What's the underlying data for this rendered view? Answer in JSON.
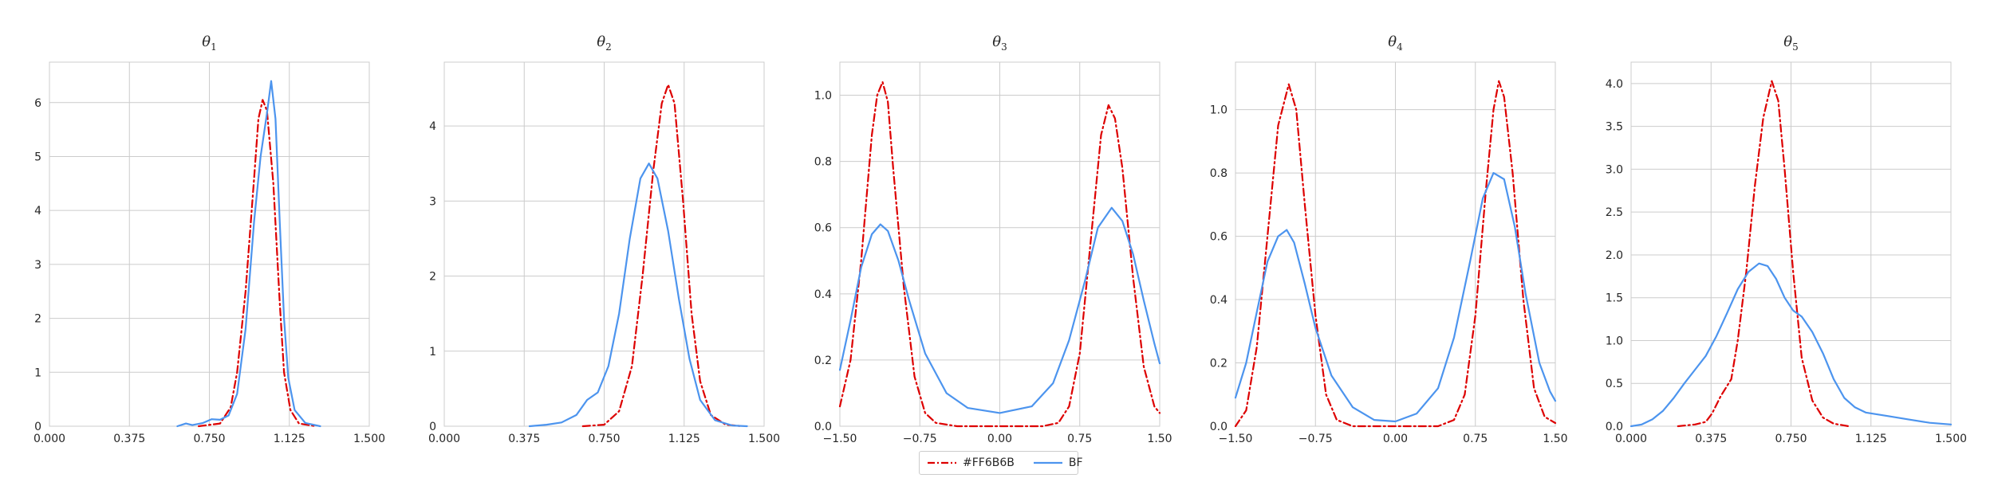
{
  "colors": {
    "series1": "#DD0000",
    "series2": "#4C94EE",
    "grid": "#cccccc",
    "text": "#262626"
  },
  "legend": {
    "placement": "bottom-center",
    "items": [
      "#FF6B6B",
      "BF"
    ]
  },
  "chart_data": [
    {
      "type": "line",
      "title": "θ",
      "title_sub": "1",
      "xlim": [
        0,
        1.5
      ],
      "ylim": [
        0,
        6.75
      ],
      "xticks": [
        "0.000",
        "0.375",
        "0.750",
        "1.125",
        "1.500"
      ],
      "yticks": [
        "0",
        "1",
        "2",
        "3",
        "4",
        "5",
        "6"
      ],
      "series": [
        {
          "name": "#FF6B6B",
          "style": "dashdot",
          "points": [
            [
              0.7,
              0
            ],
            [
              0.8,
              0.05
            ],
            [
              0.85,
              0.35
            ],
            [
              0.88,
              1.0
            ],
            [
              0.92,
              2.5
            ],
            [
              0.96,
              4.6
            ],
            [
              0.98,
              5.7
            ],
            [
              1.0,
              6.05
            ],
            [
              1.02,
              5.85
            ],
            [
              1.05,
              4.5
            ],
            [
              1.08,
              2.3
            ],
            [
              1.1,
              1.0
            ],
            [
              1.13,
              0.3
            ],
            [
              1.17,
              0.05
            ],
            [
              1.25,
              0
            ]
          ]
        },
        {
          "name": "BF",
          "style": "solid",
          "points": [
            [
              0.6,
              0
            ],
            [
              0.64,
              0.05
            ],
            [
              0.67,
              0.02
            ],
            [
              0.72,
              0.06
            ],
            [
              0.76,
              0.13
            ],
            [
              0.8,
              0.12
            ],
            [
              0.84,
              0.2
            ],
            [
              0.88,
              0.6
            ],
            [
              0.92,
              1.8
            ],
            [
              0.96,
              3.8
            ],
            [
              0.99,
              5.0
            ],
            [
              1.02,
              5.8
            ],
            [
              1.04,
              6.4
            ],
            [
              1.06,
              5.7
            ],
            [
              1.08,
              3.8
            ],
            [
              1.1,
              2.0
            ],
            [
              1.12,
              0.9
            ],
            [
              1.15,
              0.3
            ],
            [
              1.2,
              0.06
            ],
            [
              1.27,
              0
            ]
          ]
        }
      ]
    },
    {
      "type": "line",
      "title": "θ",
      "title_sub": "2",
      "xlim": [
        0,
        1.5
      ],
      "ylim": [
        0,
        4.85
      ],
      "xticks": [
        "0.000",
        "0.375",
        "0.750",
        "1.125",
        "1.500"
      ],
      "yticks": [
        "0",
        "1",
        "2",
        "3",
        "4"
      ],
      "series": [
        {
          "name": "#FF6B6B",
          "style": "dashdot",
          "points": [
            [
              0.65,
              0
            ],
            [
              0.75,
              0.02
            ],
            [
              0.82,
              0.2
            ],
            [
              0.88,
              0.8
            ],
            [
              0.93,
              2.0
            ],
            [
              0.98,
              3.4
            ],
            [
              1.02,
              4.3
            ],
            [
              1.05,
              4.55
            ],
            [
              1.08,
              4.3
            ],
            [
              1.12,
              3.0
            ],
            [
              1.16,
              1.5
            ],
            [
              1.2,
              0.6
            ],
            [
              1.25,
              0.15
            ],
            [
              1.32,
              0.02
            ],
            [
              1.4,
              0
            ]
          ]
        },
        {
          "name": "BF",
          "style": "solid",
          "points": [
            [
              0.4,
              0
            ],
            [
              0.48,
              0.02
            ],
            [
              0.55,
              0.05
            ],
            [
              0.62,
              0.15
            ],
            [
              0.67,
              0.35
            ],
            [
              0.72,
              0.45
            ],
            [
              0.77,
              0.8
            ],
            [
              0.82,
              1.5
            ],
            [
              0.87,
              2.5
            ],
            [
              0.92,
              3.3
            ],
            [
              0.96,
              3.5
            ],
            [
              1.0,
              3.3
            ],
            [
              1.05,
              2.6
            ],
            [
              1.1,
              1.7
            ],
            [
              1.15,
              0.9
            ],
            [
              1.2,
              0.35
            ],
            [
              1.27,
              0.08
            ],
            [
              1.35,
              0.01
            ],
            [
              1.42,
              0
            ]
          ]
        }
      ]
    },
    {
      "type": "line",
      "title": "θ",
      "title_sub": "3",
      "xlim": [
        -1.5,
        1.5
      ],
      "ylim": [
        0,
        1.1
      ],
      "xticks": [
        "−1.50",
        "−0.75",
        "0.00",
        "0.75",
        "1.50"
      ],
      "yticks": [
        "0.0",
        "0.2",
        "0.4",
        "0.6",
        "0.8",
        "1.0"
      ],
      "series": [
        {
          "name": "#FF6B6B",
          "style": "dashdot",
          "points": [
            [
              -1.5,
              0.06
            ],
            [
              -1.4,
              0.2
            ],
            [
              -1.3,
              0.5
            ],
            [
              -1.2,
              0.88
            ],
            [
              -1.15,
              1.0
            ],
            [
              -1.1,
              1.04
            ],
            [
              -1.05,
              0.98
            ],
            [
              -1.0,
              0.78
            ],
            [
              -0.9,
              0.42
            ],
            [
              -0.8,
              0.15
            ],
            [
              -0.7,
              0.04
            ],
            [
              -0.6,
              0.01
            ],
            [
              -0.4,
              0
            ],
            [
              0.4,
              0
            ],
            [
              0.55,
              0.01
            ],
            [
              0.65,
              0.06
            ],
            [
              0.75,
              0.22
            ],
            [
              0.85,
              0.55
            ],
            [
              0.95,
              0.88
            ],
            [
              1.02,
              0.97
            ],
            [
              1.08,
              0.93
            ],
            [
              1.15,
              0.78
            ],
            [
              1.25,
              0.45
            ],
            [
              1.35,
              0.18
            ],
            [
              1.45,
              0.06
            ],
            [
              1.5,
              0.04
            ]
          ]
        },
        {
          "name": "BF",
          "style": "solid",
          "points": [
            [
              -1.5,
              0.17
            ],
            [
              -1.4,
              0.32
            ],
            [
              -1.3,
              0.48
            ],
            [
              -1.2,
              0.58
            ],
            [
              -1.12,
              0.61
            ],
            [
              -1.05,
              0.59
            ],
            [
              -0.95,
              0.5
            ],
            [
              -0.85,
              0.38
            ],
            [
              -0.7,
              0.22
            ],
            [
              -0.5,
              0.1
            ],
            [
              -0.3,
              0.055
            ],
            [
              0.0,
              0.04
            ],
            [
              0.3,
              0.06
            ],
            [
              0.5,
              0.13
            ],
            [
              0.65,
              0.26
            ],
            [
              0.8,
              0.44
            ],
            [
              0.92,
              0.6
            ],
            [
              1.05,
              0.66
            ],
            [
              1.15,
              0.62
            ],
            [
              1.25,
              0.52
            ],
            [
              1.35,
              0.38
            ],
            [
              1.45,
              0.25
            ],
            [
              1.5,
              0.19
            ]
          ]
        }
      ]
    },
    {
      "type": "line",
      "title": "θ",
      "title_sub": "4",
      "xlim": [
        -1.5,
        1.5
      ],
      "ylim": [
        0,
        1.15
      ],
      "xticks": [
        "−1.50",
        "−0.75",
        "0.00",
        "0.75",
        "1.50"
      ],
      "yticks": [
        "0.0",
        "0.2",
        "0.4",
        "0.6",
        "0.8",
        "1.0"
      ],
      "series": [
        {
          "name": "#FF6B6B",
          "style": "dashdot",
          "points": [
            [
              -1.5,
              0
            ],
            [
              -1.4,
              0.05
            ],
            [
              -1.3,
              0.25
            ],
            [
              -1.2,
              0.6
            ],
            [
              -1.1,
              0.95
            ],
            [
              -1.0,
              1.08
            ],
            [
              -0.93,
              1.0
            ],
            [
              -0.85,
              0.7
            ],
            [
              -0.75,
              0.35
            ],
            [
              -0.65,
              0.1
            ],
            [
              -0.55,
              0.02
            ],
            [
              -0.4,
              0
            ],
            [
              0.4,
              0
            ],
            [
              0.55,
              0.02
            ],
            [
              0.65,
              0.1
            ],
            [
              0.75,
              0.35
            ],
            [
              0.85,
              0.75
            ],
            [
              0.92,
              1.0
            ],
            [
              0.97,
              1.09
            ],
            [
              1.02,
              1.04
            ],
            [
              1.1,
              0.8
            ],
            [
              1.2,
              0.4
            ],
            [
              1.3,
              0.12
            ],
            [
              1.4,
              0.03
            ],
            [
              1.5,
              0.01
            ]
          ]
        },
        {
          "name": "BF",
          "style": "solid",
          "points": [
            [
              -1.5,
              0.09
            ],
            [
              -1.4,
              0.2
            ],
            [
              -1.3,
              0.36
            ],
            [
              -1.2,
              0.52
            ],
            [
              -1.1,
              0.6
            ],
            [
              -1.02,
              0.62
            ],
            [
              -0.95,
              0.58
            ],
            [
              -0.85,
              0.45
            ],
            [
              -0.75,
              0.31
            ],
            [
              -0.6,
              0.16
            ],
            [
              -0.4,
              0.06
            ],
            [
              -0.2,
              0.02
            ],
            [
              0.0,
              0.015
            ],
            [
              0.2,
              0.04
            ],
            [
              0.4,
              0.12
            ],
            [
              0.55,
              0.28
            ],
            [
              0.7,
              0.52
            ],
            [
              0.82,
              0.72
            ],
            [
              0.92,
              0.8
            ],
            [
              1.02,
              0.78
            ],
            [
              1.12,
              0.63
            ],
            [
              1.22,
              0.42
            ],
            [
              1.35,
              0.2
            ],
            [
              1.45,
              0.11
            ],
            [
              1.5,
              0.08
            ]
          ]
        }
      ]
    },
    {
      "type": "line",
      "title": "θ",
      "title_sub": "5",
      "xlim": [
        0,
        1.5
      ],
      "ylim": [
        0,
        4.25
      ],
      "xticks": [
        "0.000",
        "0.375",
        "0.750",
        "1.125",
        "1.500"
      ],
      "yticks": [
        "0.0",
        "0.5",
        "1.0",
        "1.5",
        "2.0",
        "2.5",
        "3.0",
        "3.5",
        "4.0"
      ],
      "series": [
        {
          "name": "#FF6B6B",
          "style": "dashdot",
          "points": [
            [
              0.22,
              0
            ],
            [
              0.3,
              0.02
            ],
            [
              0.35,
              0.05
            ],
            [
              0.38,
              0.15
            ],
            [
              0.42,
              0.35
            ],
            [
              0.47,
              0.55
            ],
            [
              0.5,
              1.0
            ],
            [
              0.54,
              1.8
            ],
            [
              0.58,
              2.8
            ],
            [
              0.62,
              3.6
            ],
            [
              0.66,
              4.03
            ],
            [
              0.69,
              3.8
            ],
            [
              0.72,
              3.0
            ],
            [
              0.76,
              1.8
            ],
            [
              0.8,
              0.8
            ],
            [
              0.85,
              0.3
            ],
            [
              0.9,
              0.1
            ],
            [
              0.95,
              0.03
            ],
            [
              1.02,
              0
            ]
          ]
        },
        {
          "name": "BF",
          "style": "solid",
          "points": [
            [
              0.0,
              0
            ],
            [
              0.05,
              0.02
            ],
            [
              0.1,
              0.08
            ],
            [
              0.15,
              0.18
            ],
            [
              0.2,
              0.33
            ],
            [
              0.25,
              0.5
            ],
            [
              0.3,
              0.66
            ],
            [
              0.35,
              0.82
            ],
            [
              0.4,
              1.05
            ],
            [
              0.45,
              1.32
            ],
            [
              0.5,
              1.6
            ],
            [
              0.55,
              1.8
            ],
            [
              0.6,
              1.9
            ],
            [
              0.64,
              1.87
            ],
            [
              0.68,
              1.72
            ],
            [
              0.72,
              1.5
            ],
            [
              0.76,
              1.35
            ],
            [
              0.8,
              1.28
            ],
            [
              0.85,
              1.1
            ],
            [
              0.9,
              0.85
            ],
            [
              0.95,
              0.55
            ],
            [
              1.0,
              0.33
            ],
            [
              1.05,
              0.22
            ],
            [
              1.1,
              0.16
            ],
            [
              1.2,
              0.12
            ],
            [
              1.3,
              0.08
            ],
            [
              1.4,
              0.04
            ],
            [
              1.5,
              0.02
            ]
          ]
        }
      ]
    }
  ]
}
